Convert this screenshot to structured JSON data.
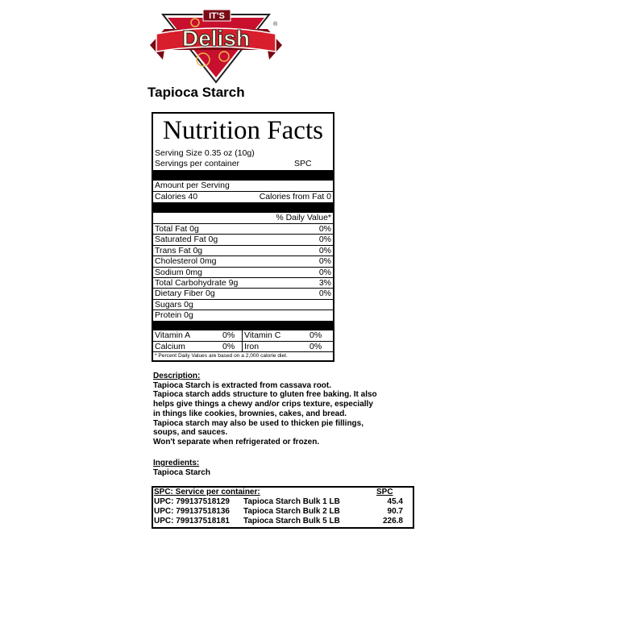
{
  "brand": {
    "logo_text_top": "IT'S",
    "logo_text_main": "Delish",
    "colors": {
      "red": "#c8102e",
      "dark_red": "#7a0a14",
      "gold": "#e8b84a"
    }
  },
  "product_title": "Tapioca Starch",
  "nutrition": {
    "title": "Nutrition Facts",
    "serving_size": "Serving Size  0.35 oz  (10g)",
    "servings_label": "Servings per container",
    "servings_value": "SPC",
    "amount_per_serving": "Amount per Serving",
    "calories": "Calories  40",
    "calories_from_fat": "Calories from Fat 0",
    "dv_header": "% Daily Value*",
    "rows": [
      {
        "label": "Total Fat 0g",
        "dv": "0%"
      },
      {
        "label": "Saturated Fat 0g",
        "dv": "0%"
      },
      {
        "label": "Trans Fat  0g",
        "dv": "0%"
      },
      {
        "label": "Cholesterol  0mg",
        "dv": "0%"
      },
      {
        "label": "Sodium  0mg",
        "dv": "0%"
      },
      {
        "label": "Total Carbohydrate 9g",
        "dv": "3%"
      },
      {
        "label": "Dietary Fiber  0g",
        "dv": "0%"
      },
      {
        "label": "Sugars 0g",
        "dv": ""
      },
      {
        "label": "Protein  0g",
        "dv": ""
      }
    ],
    "vitamins": [
      {
        "label": "Vitamin A",
        "dv": "0%"
      },
      {
        "label": "Vitamin C",
        "dv": "0%"
      },
      {
        "label": "Calcium",
        "dv": "0%"
      },
      {
        "label": "Iron",
        "dv": "0%"
      }
    ],
    "footnote": "* Percent Daily Values are based on a 2,000 calorie diet."
  },
  "description": {
    "heading": "Description:",
    "lines": [
      "Tapioca Starch is extracted from cassava root.",
      "Tapioca starch adds structure to gluten free baking. It also",
      "helps give things a chewy and/or crips texture, especially",
      "in things like cookies, brownies, cakes, and bread.",
      "Tapioca starch may also be used to thicken pie fillings,",
      "soups, and sauces.",
      "Won't separate when refrigerated or frozen."
    ]
  },
  "ingredients": {
    "heading": "Ingredients:",
    "text": "Tapioca Starch"
  },
  "spc_table": {
    "header": "SPC: Service per container:",
    "header_value": "SPC",
    "rows": [
      {
        "upc": "UPC: 799137518129",
        "name": "Tapioca Starch Bulk 1 LB",
        "spc": "45.4"
      },
      {
        "upc": "UPC: 799137518136",
        "name": "Tapioca Starch Bulk 2 LB",
        "spc": "90.7"
      },
      {
        "upc": "UPC: 799137518181",
        "name": "Tapioca Starch Bulk 5 LB",
        "spc": "226.8"
      }
    ]
  }
}
